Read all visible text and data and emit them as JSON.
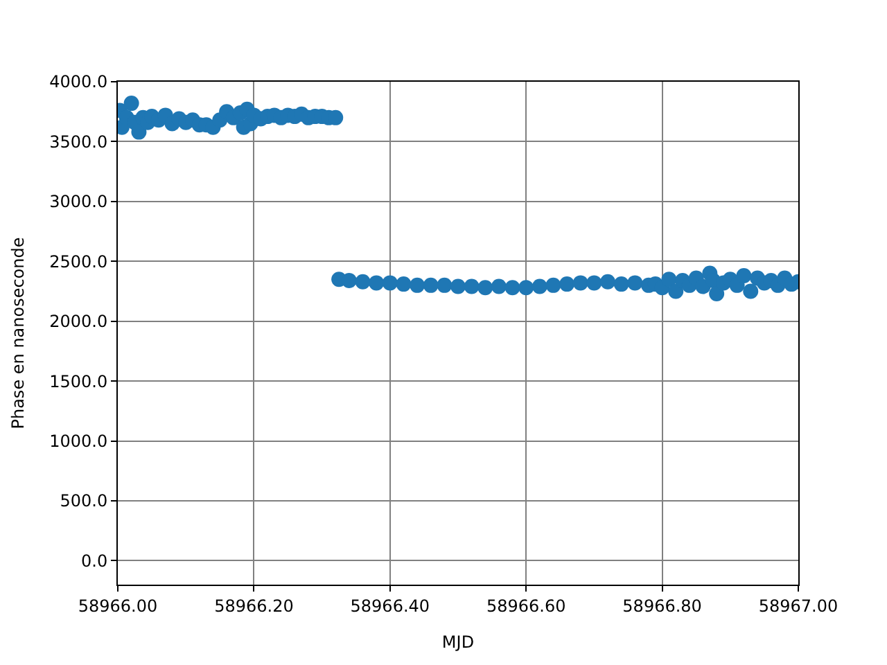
{
  "chart_data": {
    "type": "scatter",
    "xlabel": "MJD",
    "ylabel": "Phase en nanoseconde",
    "x": [
      58966.003,
      58966.006,
      58966.013,
      58966.02,
      58966.025,
      58966.031,
      58966.037,
      58966.044,
      58966.05,
      58966.06,
      58966.07,
      58966.08,
      58966.09,
      58966.1,
      58966.11,
      58966.12,
      58966.13,
      58966.14,
      58966.15,
      58966.16,
      58966.17,
      58966.18,
      58966.185,
      58966.19,
      58966.195,
      58966.2,
      58966.21,
      58966.22,
      58966.23,
      58966.24,
      58966.25,
      58966.26,
      58966.27,
      58966.28,
      58966.29,
      58966.3,
      58966.31,
      58966.32,
      58966.325,
      58966.34,
      58966.36,
      58966.38,
      58966.4,
      58966.42,
      58966.44,
      58966.46,
      58966.48,
      58966.5,
      58966.52,
      58966.54,
      58966.56,
      58966.58,
      58966.6,
      58966.62,
      58966.64,
      58966.66,
      58966.68,
      58966.7,
      58966.72,
      58966.74,
      58966.76,
      58966.78,
      58966.79,
      58966.8,
      58966.81,
      58966.82,
      58966.83,
      58966.84,
      58966.85,
      58966.86,
      58966.87,
      58966.875,
      58966.88,
      58966.89,
      58966.9,
      58966.91,
      58966.92,
      58966.93,
      58966.94,
      58966.95,
      58966.96,
      58966.97,
      58966.98,
      58966.99,
      58967.0
    ],
    "values": [
      3760,
      3620,
      3700,
      3820,
      3660,
      3580,
      3700,
      3660,
      3710,
      3680,
      3720,
      3650,
      3690,
      3660,
      3680,
      3640,
      3640,
      3620,
      3680,
      3750,
      3700,
      3740,
      3620,
      3770,
      3650,
      3720,
      3690,
      3710,
      3720,
      3700,
      3720,
      3710,
      3730,
      3700,
      3710,
      3710,
      3700,
      3700,
      2350,
      2340,
      2330,
      2320,
      2320,
      2310,
      2300,
      2300,
      2300,
      2290,
      2290,
      2280,
      2290,
      2280,
      2280,
      2290,
      2300,
      2310,
      2320,
      2320,
      2330,
      2310,
      2320,
      2300,
      2310,
      2280,
      2350,
      2250,
      2340,
      2300,
      2360,
      2290,
      2400,
      2340,
      2230,
      2320,
      2350,
      2300,
      2380,
      2250,
      2360,
      2320,
      2340,
      2300,
      2360,
      2310,
      2330
    ],
    "color": "#1f77b4",
    "marker": "circle",
    "xlim": [
      58966.0,
      58967.0
    ],
    "ylim": [
      -200,
      4000
    ],
    "xticks": [
      {
        "value": 58966.0,
        "label": "58966.00"
      },
      {
        "value": 58966.2,
        "label": "58966.20"
      },
      {
        "value": 58966.4,
        "label": "58966.40"
      },
      {
        "value": 58966.6,
        "label": "58966.60"
      },
      {
        "value": 58966.8,
        "label": "58966.80"
      },
      {
        "value": 58967.0,
        "label": "58967.00"
      }
    ],
    "yticks": [
      {
        "value": 0,
        "label": "0.0"
      },
      {
        "value": 500,
        "label": "500.0"
      },
      {
        "value": 1000,
        "label": "1000.0"
      },
      {
        "value": 1500,
        "label": "1500.0"
      },
      {
        "value": 2000,
        "label": "2000.0"
      },
      {
        "value": 2500,
        "label": "2500.0"
      },
      {
        "value": 3000,
        "label": "3000.0"
      },
      {
        "value": 3500,
        "label": "3500.0"
      },
      {
        "value": 4000,
        "label": "4000.0"
      }
    ],
    "grid": true
  }
}
